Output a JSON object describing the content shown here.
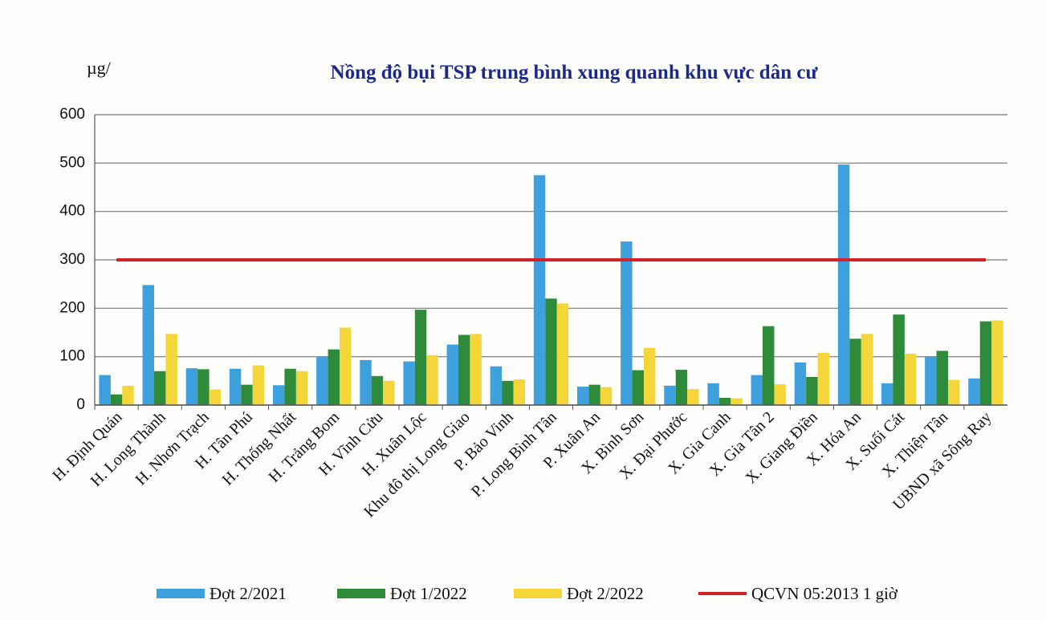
{
  "chart_data": {
    "type": "bar",
    "title": "Nồng độ bụi TSP trung bình xung quanh khu vực dân cư",
    "y_label": "µg/",
    "categories": [
      "H. Định Quán",
      "H. Long Thành",
      "H. Nhơn Trạch",
      "H. Tân Phú",
      "H. Thống Nhất",
      "H. Trảng Bom",
      "H. Vĩnh Cửu",
      "H. Xuân Lộc",
      "Khu đô thị Long Giao",
      "P. Bảo Vinh",
      "P. Long Bình Tân",
      "P. Xuân An",
      "X. Bình Sơn",
      "X. Đại Phước",
      "X. Gia Canh",
      "X. Gia Tân 2",
      "X. Giang Điền",
      "X. Hóa An",
      "X. Suối Cát",
      "X. Thiện Tân",
      "UBND xã Sông Ray"
    ],
    "series": [
      {
        "name": "Đợt 2/2021",
        "color": "#3ea0dc",
        "values": [
          62,
          248,
          76,
          75,
          41,
          100,
          93,
          90,
          125,
          80,
          475,
          38,
          338,
          40,
          45,
          62,
          88,
          497,
          45,
          100,
          55
        ]
      },
      {
        "name": "Đợt 1/2022",
        "color": "#2e8b3a",
        "values": [
          22,
          70,
          74,
          42,
          75,
          115,
          60,
          197,
          145,
          50,
          220,
          42,
          72,
          73,
          15,
          163,
          58,
          137,
          187,
          112,
          173
        ]
      },
      {
        "name": "Đợt 2/2022",
        "color": "#f5d63a",
        "values": [
          40,
          147,
          32,
          82,
          70,
          160,
          50,
          103,
          147,
          53,
          210,
          37,
          118,
          33,
          14,
          43,
          108,
          147,
          106,
          52,
          175
        ]
      },
      {
        "name": "QCVN 05:2013 1 giờ",
        "color": "#d42027",
        "type": "line",
        "values": [
          300,
          300,
          300,
          300,
          300,
          300,
          300,
          300,
          300,
          300,
          300,
          300,
          300,
          300,
          300,
          300,
          300,
          300,
          300,
          300,
          300
        ]
      }
    ],
    "ylim": [
      0,
      600
    ],
    "yticks": [
      0,
      100,
      200,
      300,
      400,
      500,
      600
    ],
    "grid": true,
    "legend": "bottom"
  }
}
